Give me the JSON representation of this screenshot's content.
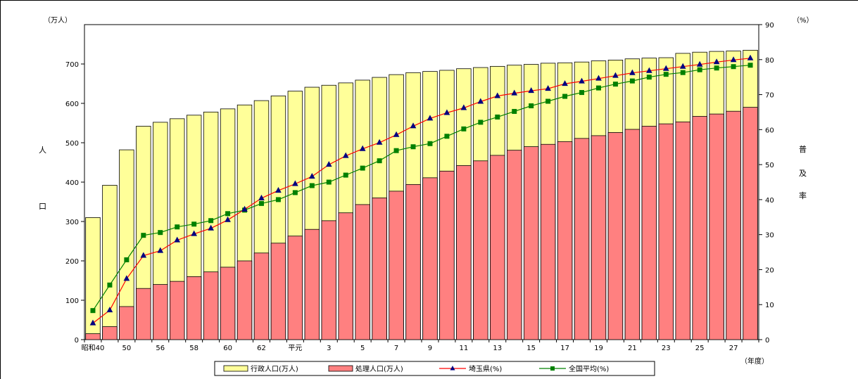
{
  "chart_data": {
    "type": "bar",
    "y_left_unit": "（万人）",
    "y_right_unit": "（%）",
    "y_left_label": [
      "人",
      "口"
    ],
    "y_right_label": [
      "普",
      "及",
      "率"
    ],
    "x_unit": "（年度）",
    "ylim_left": [
      0,
      800
    ],
    "ylim_right": [
      0,
      90
    ],
    "y_left_ticks": [
      0,
      100,
      200,
      300,
      400,
      500,
      600,
      700
    ],
    "y_right_ticks": [
      0,
      10,
      20,
      30,
      40,
      50,
      60,
      70,
      80,
      90
    ],
    "x_tick_labels": [
      {
        "index": 0,
        "label": "昭和40"
      },
      {
        "index": 2,
        "label": "50"
      },
      {
        "index": 4,
        "label": "56"
      },
      {
        "index": 6,
        "label": "58"
      },
      {
        "index": 8,
        "label": "60"
      },
      {
        "index": 10,
        "label": "62"
      },
      {
        "index": 12,
        "label": "平元"
      },
      {
        "index": 14,
        "label": "3"
      },
      {
        "index": 16,
        "label": "5"
      },
      {
        "index": 18,
        "label": "7"
      },
      {
        "index": 20,
        "label": "9"
      },
      {
        "index": 22,
        "label": "11"
      },
      {
        "index": 24,
        "label": "13"
      },
      {
        "index": 26,
        "label": "15"
      },
      {
        "index": 28,
        "label": "17"
      },
      {
        "index": 30,
        "label": "19"
      },
      {
        "index": 32,
        "label": "21"
      },
      {
        "index": 34,
        "label": "23"
      },
      {
        "index": 36,
        "label": "25"
      },
      {
        "index": 38,
        "label": "27"
      }
    ],
    "series": [
      {
        "name": "行政人口(万人)",
        "type": "bar",
        "color": "#ffff99",
        "values": [
          310,
          392,
          482,
          542,
          552,
          561,
          570,
          578,
          586,
          596,
          607,
          619,
          631,
          641,
          646,
          652,
          659,
          666,
          673,
          678,
          681,
          684,
          688,
          691,
          694,
          697,
          699,
          702,
          703,
          705,
          708,
          710,
          713,
          715,
          716,
          727,
          730,
          732,
          733,
          735
        ]
      },
      {
        "name": "処理人口(万人)",
        "type": "bar",
        "color": "#ff8080",
        "values": [
          15,
          33,
          84,
          130,
          140,
          148,
          160,
          172,
          184,
          200,
          220,
          245,
          263,
          280,
          302,
          322,
          343,
          360,
          377,
          394,
          411,
          428,
          442,
          454,
          468,
          481,
          490,
          496,
          503,
          511,
          518,
          526,
          534,
          542,
          548,
          553,
          567,
          573,
          580,
          590
        ]
      },
      {
        "name": "埼玉県(%)",
        "type": "line",
        "color": "#ff0000",
        "marker": "triangle",
        "marker_color": "#000080",
        "values": [
          4.7,
          8.4,
          17.4,
          24.0,
          25.4,
          28.4,
          30.2,
          31.8,
          34.2,
          37.2,
          40.4,
          42.6,
          44.5,
          46.6,
          50.0,
          52.5,
          54.5,
          56.3,
          58.5,
          61.0,
          63.2,
          64.8,
          66.2,
          68.0,
          69.6,
          70.4,
          71.1,
          71.7,
          73.1,
          73.8,
          74.6,
          75.4,
          76.2,
          76.8,
          77.4,
          78.0,
          78.6,
          79.3,
          79.9,
          80.4
        ]
      },
      {
        "name": "全国平均(%)",
        "type": "line",
        "color": "#008000",
        "marker": "square",
        "marker_color": "#008000",
        "values": [
          8.3,
          15.6,
          22.8,
          29.8,
          30.6,
          32.2,
          33.0,
          34.0,
          36.0,
          37.0,
          38.9,
          40.0,
          42.0,
          44.0,
          45.0,
          47.0,
          49.0,
          51.1,
          54.0,
          55.1,
          56.0,
          58.1,
          60.2,
          62.1,
          63.6,
          65.2,
          66.8,
          68.1,
          69.5,
          70.6,
          71.9,
          73.0,
          73.9,
          75.0,
          75.8,
          76.3,
          77.1,
          77.6,
          78.0,
          78.4
        ]
      }
    ],
    "legend_placement": "bottom",
    "grid": false
  }
}
